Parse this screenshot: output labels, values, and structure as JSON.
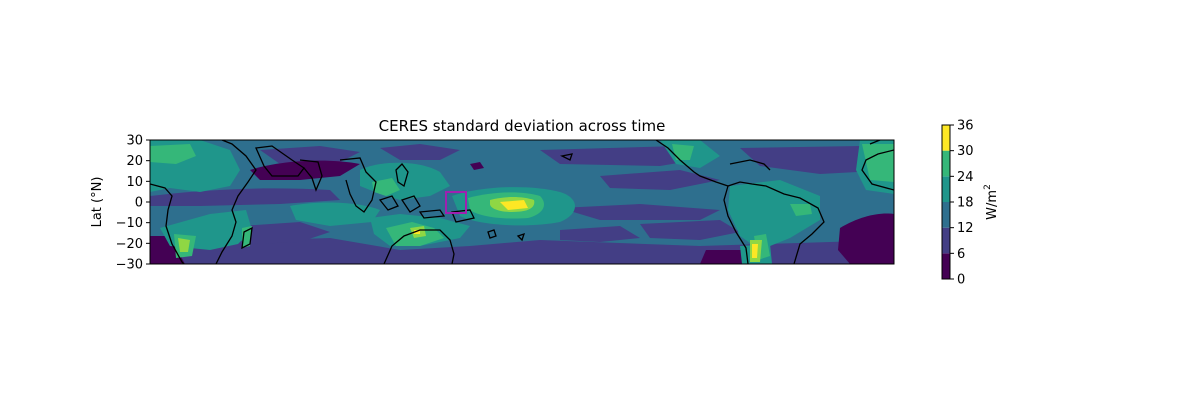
{
  "chart_data": {
    "type": "heatmap",
    "title": "CERES standard deviation across time",
    "ylabel": "Lat (°N)",
    "ylim": [
      -30,
      30
    ],
    "yticks": [
      {
        "value": 30,
        "label": "30"
      },
      {
        "value": 20,
        "label": "20"
      },
      {
        "value": 10,
        "label": "10"
      },
      {
        "value": 0,
        "label": "0"
      },
      {
        "value": -10,
        "label": "−10"
      },
      {
        "value": -20,
        "label": "−20"
      },
      {
        "value": -30,
        "label": "−30"
      }
    ],
    "colorbar": {
      "label": "W/m",
      "label_sup": "2",
      "levels": [
        0,
        6,
        12,
        18,
        24,
        30,
        36
      ],
      "tick_labels": [
        "0",
        "6",
        "12",
        "18",
        "24",
        "30",
        "36"
      ],
      "colors": [
        "#440154",
        "#433e85",
        "#2e6f8e",
        "#1f968b",
        "#35b779",
        "#8fd744",
        "#fde725"
      ]
    },
    "grid": false,
    "colormap": "viridis",
    "highlight_box": {
      "color": "#a020b0"
    }
  }
}
